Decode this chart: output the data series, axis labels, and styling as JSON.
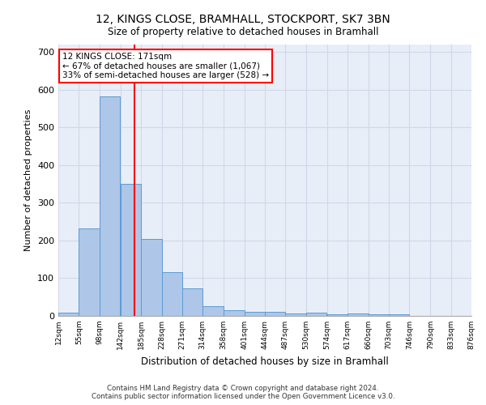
{
  "title_line1": "12, KINGS CLOSE, BRAMHALL, STOCKPORT, SK7 3BN",
  "title_line2": "Size of property relative to detached houses in Bramhall",
  "xlabel": "Distribution of detached houses by size in Bramhall",
  "ylabel": "Number of detached properties",
  "bar_color": "#aec6e8",
  "bar_edge_color": "#5b9bd5",
  "grid_color": "#d0d8e8",
  "background_color": "#e8eef8",
  "annotation_line_color": "red",
  "annotation_box_color": "red",
  "annotation_text": "12 KINGS CLOSE: 171sqm\n← 67% of detached houses are smaller (1,067)\n33% of semi-detached houses are larger (528) →",
  "property_size": 171,
  "bin_edges": [
    12,
    55,
    98,
    142,
    185,
    228,
    271,
    314,
    358,
    401,
    444,
    487,
    530,
    574,
    617,
    660,
    703,
    746,
    790,
    833,
    876
  ],
  "bin_labels": [
    "12sqm",
    "55sqm",
    "98sqm",
    "142sqm",
    "185sqm",
    "228sqm",
    "271sqm",
    "314sqm",
    "358sqm",
    "401sqm",
    "444sqm",
    "487sqm",
    "530sqm",
    "574sqm",
    "617sqm",
    "660sqm",
    "703sqm",
    "746sqm",
    "790sqm",
    "833sqm",
    "876sqm"
  ],
  "bar_heights": [
    8,
    233,
    583,
    350,
    204,
    115,
    74,
    25,
    15,
    11,
    10,
    6,
    8,
    4,
    6,
    4,
    4,
    0,
    0,
    0
  ],
  "ylim": [
    0,
    720
  ],
  "xlim": [
    12,
    876
  ],
  "yticks": [
    0,
    100,
    200,
    300,
    400,
    500,
    600,
    700
  ],
  "footnote1": "Contains HM Land Registry data © Crown copyright and database right 2024.",
  "footnote2": "Contains public sector information licensed under the Open Government Licence v3.0."
}
